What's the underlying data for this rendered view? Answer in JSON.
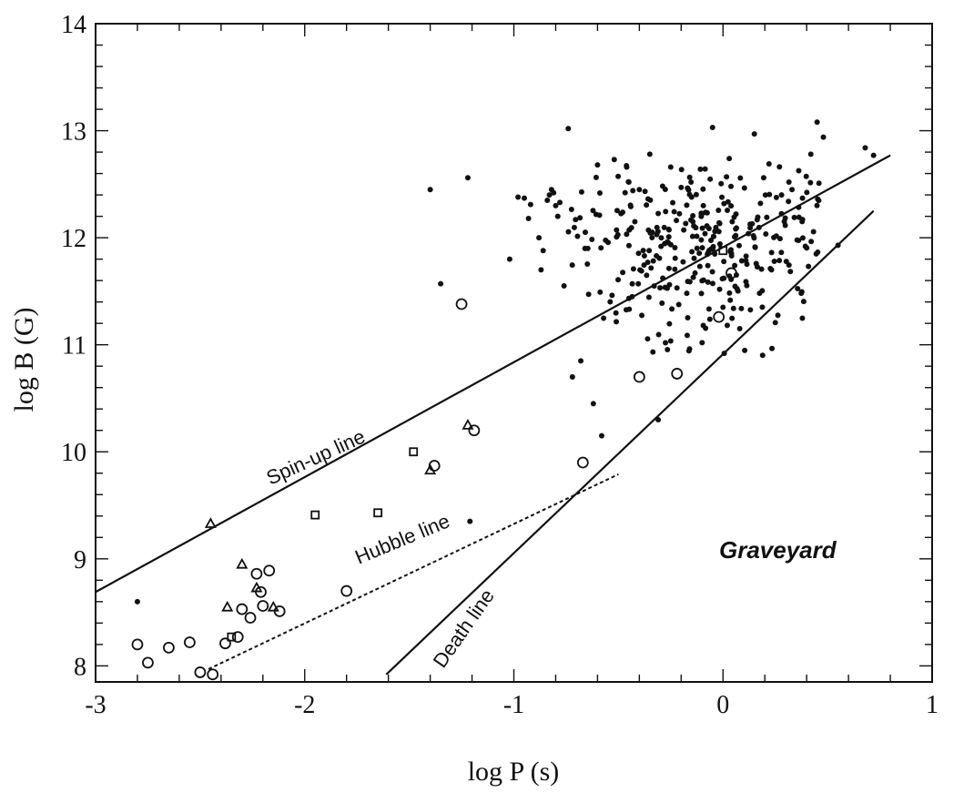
{
  "chart_data": {
    "type": "scatter",
    "title": "",
    "xlabel": "log P (s)",
    "ylabel": "log B (G)",
    "xlim": [
      -3,
      1
    ],
    "ylim": [
      7.85,
      14
    ],
    "x_ticks": [
      "-3",
      "-2",
      "-1",
      "0",
      "1"
    ],
    "y_ticks": [
      "8",
      "9",
      "10",
      "11",
      "12",
      "13",
      "14"
    ],
    "lines": [
      {
        "name": "Spin-up line",
        "style": "solid",
        "points": [
          [
            -3.0,
            8.69
          ],
          [
            0.8,
            12.77
          ]
        ]
      },
      {
        "name": "Hubble line",
        "style": "dashed",
        "points": [
          [
            -2.46,
            7.97
          ],
          [
            -0.5,
            9.79
          ]
        ]
      },
      {
        "name": "Death line",
        "style": "solid",
        "points": [
          [
            -1.61,
            7.92
          ],
          [
            0.72,
            12.25
          ]
        ]
      }
    ],
    "annotations": [
      {
        "text": "Graveyard"
      }
    ],
    "series": [
      {
        "marker": "filled-dot",
        "points": [
          [
            -2.8,
            8.6
          ],
          [
            -1.4,
            12.45
          ],
          [
            -1.22,
            12.56
          ],
          [
            -1.35,
            11.57
          ],
          [
            -1.21,
            9.35
          ],
          [
            -1.02,
            11.8
          ],
          [
            -0.98,
            12.38
          ],
          [
            -0.95,
            12.37
          ],
          [
            -0.93,
            12.18
          ],
          [
            -0.92,
            12.31
          ],
          [
            -0.88,
            12.0
          ],
          [
            -0.87,
            11.7
          ],
          [
            -0.86,
            11.88
          ],
          [
            -0.84,
            12.35
          ],
          [
            -0.83,
            12.4
          ],
          [
            -0.82,
            12.45
          ],
          [
            -0.81,
            12.42
          ],
          [
            -0.8,
            12.3
          ],
          [
            -0.79,
            12.2
          ],
          [
            -0.78,
            12.33
          ],
          [
            -0.76,
            11.55
          ],
          [
            -0.74,
            13.02
          ],
          [
            -0.72,
            10.7
          ],
          [
            -0.68,
            10.85
          ],
          [
            -0.66,
            11.9
          ],
          [
            -0.62,
            10.45
          ],
          [
            -0.6,
            12.68
          ],
          [
            -0.58,
            10.15
          ],
          [
            -0.52,
            12.73
          ],
          [
            -0.45,
            12.52
          ],
          [
            -0.4,
            12.45
          ],
          [
            -0.35,
            12.78
          ],
          [
            -0.31,
            10.3
          ],
          [
            -0.25,
            12.66
          ],
          [
            -0.2,
            12.47
          ],
          [
            -0.15,
            12.38
          ],
          [
            -0.1,
            11.02
          ],
          [
            -0.05,
            13.03
          ],
          [
            0.0,
            11.35
          ],
          [
            0.03,
            12.74
          ],
          [
            0.08,
            11.15
          ],
          [
            0.15,
            12.97
          ],
          [
            0.22,
            12.69
          ],
          [
            0.28,
            12.4
          ],
          [
            0.33,
            12.45
          ],
          [
            0.38,
            12.37
          ],
          [
            0.42,
            12.78
          ],
          [
            0.45,
            13.08
          ],
          [
            0.48,
            12.94
          ],
          [
            0.55,
            11.93
          ],
          [
            0.68,
            12.84
          ],
          [
            0.72,
            12.77
          ]
        ]
      },
      {
        "marker": "open-circle",
        "points": [
          [
            -2.8,
            8.2
          ],
          [
            -2.75,
            8.03
          ],
          [
            -2.65,
            8.17
          ],
          [
            -2.55,
            8.22
          ],
          [
            -2.5,
            7.94
          ],
          [
            -2.44,
            7.92
          ],
          [
            -2.38,
            8.21
          ],
          [
            -2.32,
            8.27
          ],
          [
            -2.3,
            8.53
          ],
          [
            -2.26,
            8.45
          ],
          [
            -2.23,
            8.86
          ],
          [
            -2.21,
            8.69
          ],
          [
            -2.2,
            8.56
          ],
          [
            -2.17,
            8.89
          ],
          [
            -2.12,
            8.51
          ],
          [
            -1.8,
            8.7
          ],
          [
            -1.38,
            9.87
          ],
          [
            -1.25,
            11.38
          ],
          [
            -1.19,
            10.2
          ],
          [
            -0.67,
            9.9
          ],
          [
            -0.4,
            10.7
          ],
          [
            -0.22,
            10.73
          ],
          [
            -0.02,
            11.26
          ],
          [
            0.04,
            11.67
          ]
        ]
      },
      {
        "marker": "open-triangle",
        "points": [
          [
            -2.45,
            9.33
          ],
          [
            -2.3,
            8.95
          ],
          [
            -2.37,
            8.55
          ],
          [
            -2.23,
            8.73
          ],
          [
            -2.15,
            8.55
          ],
          [
            -1.4,
            9.83
          ],
          [
            -1.22,
            10.25
          ]
        ]
      },
      {
        "marker": "open-square",
        "points": [
          [
            -2.35,
            8.27
          ],
          [
            -1.95,
            9.41
          ],
          [
            -1.65,
            9.43
          ],
          [
            -1.48,
            10.0
          ],
          [
            0.0,
            11.88
          ]
        ]
      }
    ],
    "cluster": {
      "marker": "filled-dot",
      "center": [
        -0.1,
        11.9
      ],
      "spread": [
        0.32,
        0.42
      ],
      "count": 320,
      "x_range": [
        -0.75,
        0.5
      ],
      "y_range": [
        10.9,
        12.7
      ]
    }
  }
}
